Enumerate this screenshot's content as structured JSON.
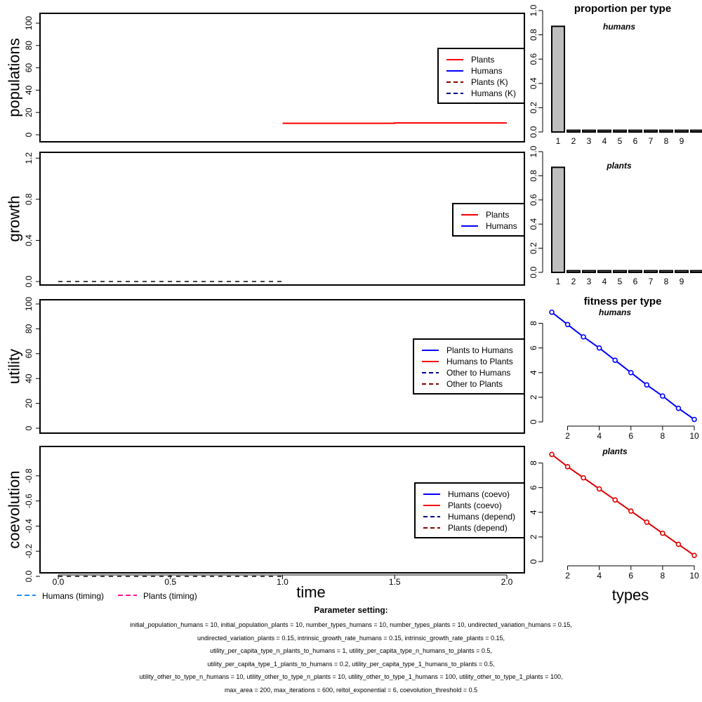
{
  "chart_data": [
    {
      "type": "line",
      "panel": "populations",
      "ylabel": "populations",
      "ylim": [
        0,
        100
      ],
      "yticks": [
        0,
        20,
        40,
        60,
        80,
        100
      ],
      "xlim": [
        0,
        2
      ],
      "series": [
        {
          "name": "Plants",
          "color": "#ff0000",
          "dash": false,
          "x": [
            1,
            1.5,
            1.5,
            2
          ],
          "y": [
            10.3,
            10.3,
            10.6,
            10.6
          ]
        },
        {
          "name": "Humans",
          "color": "#0000ff",
          "dash": false,
          "x": [],
          "y": []
        },
        {
          "name": "Plants (K)",
          "color": "#8b0000",
          "dash": true,
          "x": [],
          "y": []
        },
        {
          "name": "Humans (K)",
          "color": "#00008b",
          "dash": true,
          "x": [],
          "y": []
        }
      ],
      "legend_position": "right"
    },
    {
      "type": "line",
      "panel": "growth",
      "ylabel": "growth",
      "ylim": [
        0,
        1.4
      ],
      "yticks": [
        0.0,
        0.4,
        0.8,
        1.2
      ],
      "ytick_labels": [
        "0.0",
        "0.4",
        "0.8",
        "1.2"
      ],
      "xlim": [
        0,
        2
      ],
      "series": [
        {
          "name": "Plants",
          "color": "#ff0000",
          "dash": false,
          "x": [],
          "y": []
        },
        {
          "name": "Humans",
          "color": "#0000ff",
          "dash": false,
          "x": [],
          "y": []
        },
        {
          "name": "",
          "color": "#000000",
          "dash": true,
          "x": [
            0,
            1
          ],
          "y": [
            0,
            0
          ]
        }
      ],
      "legend_series": [
        "Plants",
        "Humans"
      ],
      "legend_position": "right"
    },
    {
      "type": "line",
      "panel": "utility",
      "ylabel": "utility",
      "ylim": [
        0,
        100
      ],
      "yticks": [
        0,
        20,
        40,
        60,
        80,
        100
      ],
      "xlim": [
        0,
        2
      ],
      "series": [
        {
          "name": "Plants to Humans",
          "color": "#0000ff",
          "dash": false,
          "x": [],
          "y": []
        },
        {
          "name": "Humans to Plants",
          "color": "#ff0000",
          "dash": false,
          "x": [],
          "y": []
        },
        {
          "name": "Other to Humans",
          "color": "#00008b",
          "dash": true,
          "x": [],
          "y": []
        },
        {
          "name": "Other to Plants",
          "color": "#8b0000",
          "dash": true,
          "x": [],
          "y": []
        }
      ],
      "legend_position": "right"
    },
    {
      "type": "line",
      "panel": "coevolution",
      "ylabel": "coevolution",
      "xlabel": "time",
      "ylim": [
        -1,
        0
      ],
      "yticks": [
        0.0,
        -0.2,
        -0.4,
        -0.6,
        -0.8
      ],
      "ytick_labels": [
        "0.0",
        "-0.2",
        "-0.4",
        "-0.6",
        "-0.8"
      ],
      "xlim": [
        0,
        2
      ],
      "xticks": [
        0,
        0.5,
        1,
        1.5,
        2
      ],
      "xtick_labels": [
        "0.0",
        "0.5",
        "1.0",
        "1.5",
        "2.0"
      ],
      "series": [
        {
          "name": "Humans (coevo)",
          "color": "#0000ff",
          "dash": false,
          "x": [],
          "y": []
        },
        {
          "name": "Plants (coevo)",
          "color": "#ff0000",
          "dash": false,
          "x": [],
          "y": []
        },
        {
          "name": "Humans (depend)",
          "color": "#00008b",
          "dash": true,
          "x": [],
          "y": []
        },
        {
          "name": "Plants (depend)",
          "color": "#8b0000",
          "dash": true,
          "x": [],
          "y": []
        },
        {
          "name": "",
          "color": "#000000",
          "dash": true,
          "x": [
            0,
            1
          ],
          "y": [
            0,
            0
          ]
        }
      ],
      "legend_series": [
        "Humans (coevo)",
        "Plants (coevo)",
        "Humans (depend)",
        "Plants (depend)"
      ],
      "legend_position": "right",
      "bottom_legend": [
        {
          "name": "Humans (timing)",
          "color": "#1e90ff"
        },
        {
          "name": "Plants (timing)",
          "color": "#ff1493"
        }
      ]
    },
    {
      "type": "bar",
      "panel": "proportion-humans",
      "title": "proportion per type",
      "subtitle": "humans",
      "categories": [
        "1",
        "2",
        "3",
        "4",
        "5",
        "6",
        "7",
        "8",
        "9",
        "10"
      ],
      "category_labels": [
        "1",
        "2",
        "3",
        "4",
        "5",
        "6",
        "7",
        "8",
        "9",
        ""
      ],
      "values": [
        0.87,
        0.014,
        0.014,
        0.014,
        0.014,
        0.014,
        0.014,
        0.014,
        0.014,
        0.014
      ],
      "ylim": [
        0,
        1
      ],
      "yticks": [
        0.0,
        0.2,
        0.4,
        0.6,
        0.8,
        1.0
      ],
      "ytick_labels": [
        "0.0",
        "0.2",
        "0.4",
        "0.6",
        "0.8",
        "1.0"
      ],
      "bar_color": "#bebebe"
    },
    {
      "type": "bar",
      "panel": "proportion-plants",
      "subtitle": "plants",
      "categories": [
        "1",
        "2",
        "3",
        "4",
        "5",
        "6",
        "7",
        "8",
        "9",
        "10"
      ],
      "category_labels": [
        "1",
        "2",
        "3",
        "4",
        "5",
        "6",
        "7",
        "8",
        "9",
        ""
      ],
      "values": [
        0.87,
        0.014,
        0.014,
        0.014,
        0.014,
        0.014,
        0.014,
        0.014,
        0.014,
        0.014
      ],
      "ylim": [
        0,
        1
      ],
      "yticks": [
        0.0,
        0.2,
        0.4,
        0.6,
        0.8,
        1.0
      ],
      "ytick_labels": [
        "0.0",
        "0.2",
        "0.4",
        "0.6",
        "0.8",
        "1.0"
      ],
      "bar_color": "#bebebe"
    },
    {
      "type": "line",
      "panel": "fitness-humans",
      "title": "fitness per type",
      "subtitle": "humans",
      "x": [
        1,
        2,
        3,
        4,
        5,
        6,
        7,
        8,
        9,
        10
      ],
      "y": [
        8.9,
        7.9,
        6.9,
        6.0,
        5.0,
        4.0,
        3.0,
        2.1,
        1.1,
        0.2
      ],
      "xlim": [
        1,
        10
      ],
      "xticks": [
        2,
        4,
        6,
        8,
        10
      ],
      "ylim": [
        0,
        9
      ],
      "yticks": [
        0,
        2,
        4,
        6,
        8
      ],
      "color": "#0000ff"
    },
    {
      "type": "line",
      "panel": "fitness-plants",
      "subtitle": "plants",
      "xlabel": "types",
      "x": [
        1,
        2,
        3,
        4,
        5,
        6,
        7,
        8,
        9,
        10
      ],
      "y": [
        8.7,
        7.7,
        6.8,
        5.9,
        5.0,
        4.1,
        3.2,
        2.3,
        1.4,
        0.5
      ],
      "xlim": [
        1,
        10
      ],
      "xticks": [
        2,
        4,
        6,
        8,
        10
      ],
      "ylim": [
        0,
        9
      ],
      "yticks": [
        0,
        2,
        4,
        6,
        8
      ],
      "color": "#e00000"
    }
  ],
  "parameters": {
    "title": "Parameter setting:",
    "lines": [
      "initial_population_humans = 10, initial_population_plants = 10, number_types_humans = 10, number_types_plants = 10, undirected_variation_humans = 0.15,",
      "undirected_variation_plants = 0.15, intrinsic_growth_rate_humans = 0.15, intrinsic_growth_rate_plants = 0.15,",
      "utility_per_capita_type_n_plants_to_humans = 1, utility_per_capita_type_n_humans_to_plants = 0.5,",
      "utility_per_capita_type_1_plants_to_humans = 0.2, utility_per_capita_type_1_humans_to_plants = 0.5,",
      "utility_other_to_type_n_humans = 10, utility_other_to_type_n_plants = 10, utility_other_to_type_1_humans = 100, utility_other_to_type_1_plants = 100,",
      "max_area = 200, max_iterations = 600, reltol_exponential = 6, coevolution_threshold = 0.5"
    ]
  }
}
